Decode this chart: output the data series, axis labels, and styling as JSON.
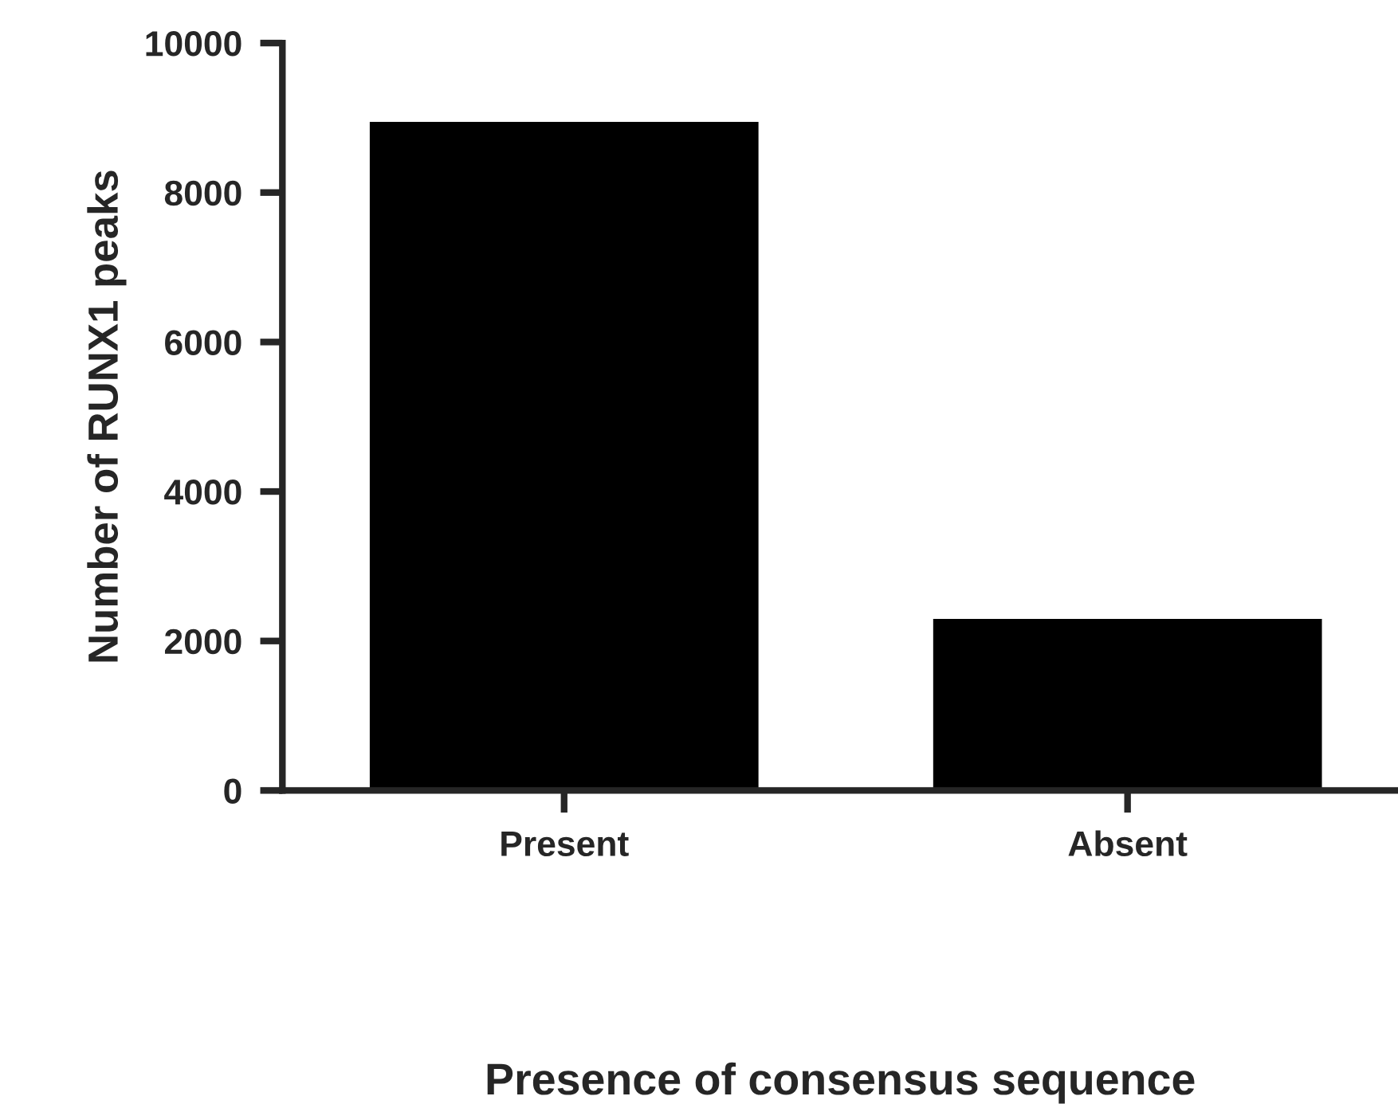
{
  "chart_data": {
    "type": "bar",
    "xlabel": "Presence of consensus sequence",
    "ylabel": "Number of RUNX1 peaks",
    "categories": [
      "Present",
      "Absent"
    ],
    "values": [
      8930,
      2280
    ],
    "color": "#000000",
    "ylim": [
      0,
      10000
    ],
    "yticks": [
      0,
      2000,
      4000,
      6000,
      8000,
      10000
    ],
    "grid": false,
    "legend": false
  }
}
